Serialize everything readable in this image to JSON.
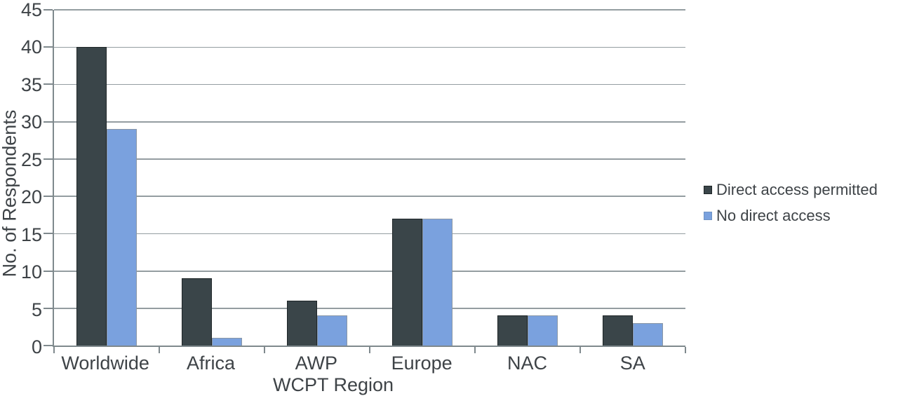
{
  "chart_data": {
    "type": "bar",
    "title": "",
    "xlabel": "WCPT Region",
    "ylabel": "No. of Respondents",
    "categories": [
      "Worldwide",
      "Africa",
      "AWP",
      "Europe",
      "NAC",
      "SA"
    ],
    "series": [
      {
        "name": "Direct access permitted",
        "color": "#3a4549",
        "values": [
          40,
          9,
          6,
          17,
          4,
          4
        ]
      },
      {
        "name": "No direct access",
        "color": "#7aa1de",
        "values": [
          29,
          1,
          4,
          17,
          4,
          3
        ]
      }
    ],
    "ylim": [
      0,
      45
    ],
    "yticks": [
      0,
      5,
      10,
      15,
      20,
      25,
      30,
      35,
      40,
      45
    ],
    "grid": true,
    "legend_position": "right",
    "gridline_color": "#949da1",
    "axis_color": "#7f898d",
    "text_color": "#3e4347"
  }
}
